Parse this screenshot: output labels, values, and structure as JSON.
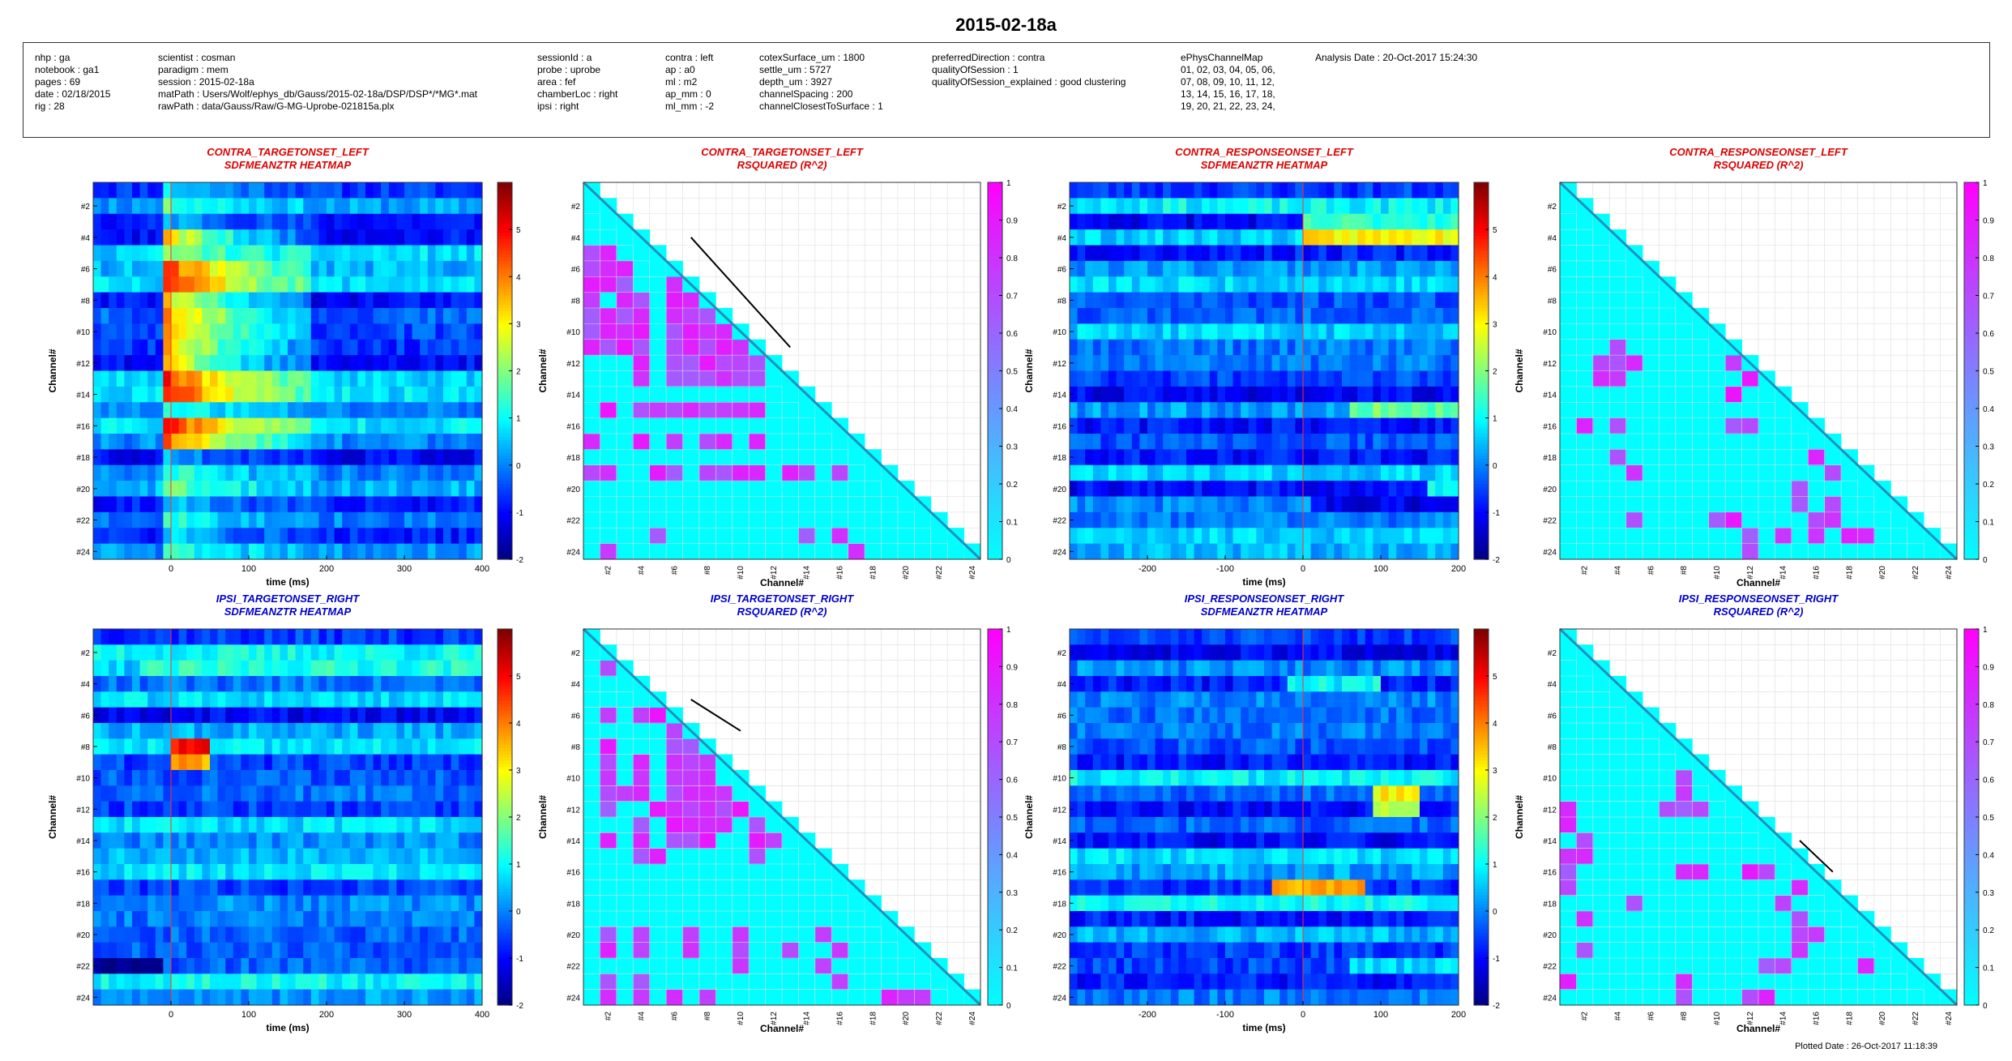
{
  "page": {
    "title": "2015-02-18a",
    "plotted_date": "Plotted Date : 26-Oct-2017 11:18:39"
  },
  "info": {
    "columns": [
      [
        "nhp : ga",
        "notebook : ga1",
        "pages : 69",
        "date : 02/18/2015",
        "rig : 28"
      ],
      [
        "scientist : cosman",
        "paradigm : mem",
        "session : 2015-02-18a",
        "matPath : Users/Wolf/ephys_db/Gauss/2015-02-18a/DSP/DSP*/*MG*.mat",
        "rawPath : data/Gauss/Raw/G-MG-Uprobe-021815a.plx"
      ],
      [
        "sessionId : a",
        "probe : uprobe",
        "area : fef",
        "chamberLoc : right",
        "ipsi : right"
      ],
      [
        "contra : left",
        "ap : a0",
        "ml : m2",
        "ap_mm : 0",
        "ml_mm : -2"
      ],
      [
        "cotexSurface_um : 1800",
        "settle_um : 5727",
        "depth_um : 3927",
        "channelSpacing : 200",
        "channelClosestToSurface : 1"
      ],
      [
        "preferredDirection : contra",
        "qualityOfSession : 1",
        "qualityOfSession_explained : good clustering"
      ],
      [
        "ePhysChannelMap",
        "01, 02, 03, 04, 05, 06,",
        "07, 08, 09, 10, 11, 12,",
        "13, 14, 15, 16, 17, 18,",
        "19, 20, 21, 22, 23, 24,"
      ],
      [
        "Analysis Date : 20-Oct-2017 15:24:30"
      ]
    ]
  },
  "colors": {
    "contra_title": "#dd0000",
    "ipsi_title": "#0000cc",
    "r2_low": "#00ffff",
    "r2_high": "#ff00ff",
    "diag_line": "#1f8fc0"
  },
  "chart_data": [
    {
      "type": "heatmap",
      "colormap": "jet",
      "title": [
        "CONTRA_TARGETONSET_LEFT",
        "SDFMEANZTR HEATMAP"
      ],
      "xlabel": "time (ms)",
      "ylabel": "Channel#",
      "xlim": [
        -100,
        400
      ],
      "xticks": [
        0,
        100,
        200,
        300,
        400
      ],
      "event_x": 0,
      "yticks": [
        "#2",
        "#4",
        "#6",
        "#8",
        "#10",
        "#12",
        "#14",
        "#16",
        "#18",
        "#20",
        "#22",
        "#24"
      ],
      "clim": [
        -2,
        6
      ],
      "colorbar_ticks": [
        -2,
        -1,
        0,
        1,
        2,
        3,
        4,
        5
      ],
      "channels": 24,
      "bins": 50,
      "pattern": "target",
      "seed": 11
    },
    {
      "type": "heatmap",
      "colormap": "cyan-magenta",
      "title": [
        "CONTRA_TARGETONSET_LEFT",
        "RSQUARED (R^2)"
      ],
      "xlabel": "Channel#",
      "ylabel": "Channel#",
      "ticks": [
        "#2",
        "#4",
        "#6",
        "#8",
        "#10",
        "#12",
        "#14",
        "#16",
        "#18",
        "#20",
        "#22",
        "#24"
      ],
      "clim": [
        0,
        1
      ],
      "colorbar_ticks": [
        0,
        0.1,
        0.2,
        0.3,
        0.4,
        0.5,
        0.6,
        0.7,
        0.8,
        0.9,
        1
      ],
      "channels": 24,
      "high_cells": [
        [
          4,
          0
        ],
        [
          5,
          0
        ],
        [
          6,
          0
        ],
        [
          7,
          0
        ],
        [
          8,
          0
        ],
        [
          9,
          0
        ],
        [
          10,
          0
        ],
        [
          4,
          1
        ],
        [
          5,
          1
        ],
        [
          6,
          1
        ],
        [
          8,
          1
        ],
        [
          9,
          1
        ],
        [
          10,
          1
        ],
        [
          5,
          2
        ],
        [
          6,
          2
        ],
        [
          7,
          2
        ],
        [
          8,
          2
        ],
        [
          9,
          2
        ],
        [
          10,
          2
        ],
        [
          7,
          3
        ],
        [
          8,
          3
        ],
        [
          9,
          3
        ],
        [
          10,
          3
        ],
        [
          11,
          3
        ],
        [
          12,
          3
        ],
        [
          14,
          1
        ],
        [
          14,
          3
        ],
        [
          14,
          4
        ],
        [
          14,
          5
        ],
        [
          14,
          6
        ],
        [
          14,
          7
        ],
        [
          14,
          8
        ],
        [
          14,
          9
        ],
        [
          14,
          10
        ],
        [
          16,
          0
        ],
        [
          16,
          3
        ],
        [
          16,
          5
        ],
        [
          16,
          7
        ],
        [
          16,
          8
        ],
        [
          16,
          10
        ],
        [
          18,
          0
        ],
        [
          18,
          1
        ],
        [
          18,
          4
        ],
        [
          18,
          5
        ],
        [
          18,
          7
        ],
        [
          18,
          8
        ],
        [
          18,
          9
        ],
        [
          18,
          10
        ],
        [
          18,
          12
        ],
        [
          18,
          13
        ],
        [
          18,
          15
        ],
        [
          22,
          4
        ],
        [
          22,
          13
        ],
        [
          22,
          15
        ],
        [
          23,
          1
        ],
        [
          23,
          16
        ],
        [
          24,
          0
        ],
        [
          24,
          1
        ],
        [
          24,
          5
        ],
        [
          24,
          6
        ],
        [
          24,
          7
        ],
        [
          24,
          8
        ],
        [
          24,
          9
        ],
        [
          24,
          10
        ],
        [
          24,
          11
        ]
      ],
      "high_block": {
        "rows": [
          4,
          12
        ],
        "cols": [
          5,
          10
        ]
      },
      "slope_line": [
        [
          6.5,
          3.5
        ],
        [
          12.5,
          10.5
        ]
      ]
    },
    {
      "type": "heatmap",
      "colormap": "jet",
      "title": [
        "CONTRA_RESPONSEONSET_LEFT",
        "SDFMEANZTR HEATMAP"
      ],
      "xlabel": "time (ms)",
      "ylabel": "Channel#",
      "xlim": [
        -300,
        200
      ],
      "xticks": [
        -200,
        -100,
        0,
        100,
        200
      ],
      "event_x": 0,
      "yticks": [
        "#2",
        "#4",
        "#6",
        "#8",
        "#10",
        "#12",
        "#14",
        "#16",
        "#18",
        "#20",
        "#22",
        "#24"
      ],
      "clim": [
        -2,
        6
      ],
      "colorbar_ticks": [
        -2,
        -1,
        0,
        1,
        2,
        3,
        4,
        5
      ],
      "channels": 24,
      "bins": 50,
      "pattern": "response_contra",
      "seed": 23
    },
    {
      "type": "heatmap",
      "colormap": "cyan-magenta",
      "title": [
        "CONTRA_RESPONSEONSET_LEFT",
        "RSQUARED (R^2)"
      ],
      "xlabel": "Channel#",
      "ylabel": "Channel#",
      "ticks": [
        "#2",
        "#4",
        "#6",
        "#8",
        "#10",
        "#12",
        "#14",
        "#16",
        "#18",
        "#20",
        "#22",
        "#24"
      ],
      "clim": [
        0,
        1
      ],
      "colorbar_ticks": [
        0,
        0.1,
        0.2,
        0.3,
        0.4,
        0.5,
        0.6,
        0.7,
        0.8,
        0.9,
        1
      ],
      "channels": 24,
      "high_cells": [
        [
          10,
          3
        ],
        [
          11,
          2
        ],
        [
          11,
          3
        ],
        [
          11,
          4
        ],
        [
          12,
          2
        ],
        [
          12,
          3
        ],
        [
          11,
          10
        ],
        [
          12,
          11
        ],
        [
          13,
          10
        ],
        [
          15,
          1
        ],
        [
          15,
          3
        ],
        [
          15,
          10
        ],
        [
          15,
          11
        ],
        [
          17,
          3
        ],
        [
          17,
          15
        ],
        [
          18,
          4
        ],
        [
          18,
          16
        ],
        [
          19,
          14
        ],
        [
          20,
          14
        ],
        [
          20,
          16
        ],
        [
          21,
          4
        ],
        [
          21,
          9
        ],
        [
          21,
          10
        ],
        [
          21,
          15
        ],
        [
          21,
          16
        ],
        [
          22,
          11
        ],
        [
          22,
          13
        ],
        [
          22,
          15
        ],
        [
          22,
          17
        ],
        [
          22,
          18
        ],
        [
          23,
          11
        ]
      ],
      "slope_line": null
    },
    {
      "type": "heatmap",
      "colormap": "jet",
      "title": [
        "IPSI_TARGETONSET_RIGHT",
        "SDFMEANZTR HEATMAP"
      ],
      "xlabel": "time (ms)",
      "ylabel": "Channel#",
      "xlim": [
        -100,
        400
      ],
      "xticks": [
        0,
        100,
        200,
        300,
        400
      ],
      "event_x": 0,
      "yticks": [
        "#2",
        "#4",
        "#6",
        "#8",
        "#10",
        "#12",
        "#14",
        "#16",
        "#18",
        "#20",
        "#22",
        "#24"
      ],
      "clim": [
        -2,
        6
      ],
      "colorbar_ticks": [
        -2,
        -1,
        0,
        1,
        2,
        3,
        4,
        5
      ],
      "channels": 24,
      "bins": 50,
      "pattern": "ipsi_target",
      "seed": 37
    },
    {
      "type": "heatmap",
      "colormap": "cyan-magenta",
      "title": [
        "IPSI_TARGETONSET_RIGHT",
        "RSQUARED (R^2)"
      ],
      "xlabel": "Channel#",
      "ylabel": "Channel#",
      "ticks": [
        "#2",
        "#4",
        "#6",
        "#8",
        "#10",
        "#12",
        "#14",
        "#16",
        "#18",
        "#20",
        "#22",
        "#24"
      ],
      "clim": [
        0,
        1
      ],
      "colorbar_ticks": [
        0,
        0.1,
        0.2,
        0.3,
        0.4,
        0.5,
        0.6,
        0.7,
        0.8,
        0.9,
        1
      ],
      "channels": 24,
      "high_cells": [
        [
          2,
          1
        ],
        [
          5,
          1
        ],
        [
          5,
          3
        ],
        [
          5,
          4
        ],
        [
          6,
          5
        ],
        [
          7,
          1
        ],
        [
          7,
          5
        ],
        [
          7,
          6
        ],
        [
          8,
          1
        ],
        [
          8,
          3
        ],
        [
          8,
          5
        ],
        [
          8,
          6
        ],
        [
          8,
          7
        ],
        [
          9,
          1
        ],
        [
          9,
          3
        ],
        [
          9,
          5
        ],
        [
          9,
          6
        ],
        [
          9,
          7
        ],
        [
          10,
          1
        ],
        [
          10,
          2
        ],
        [
          10,
          3
        ],
        [
          10,
          5
        ],
        [
          10,
          6
        ],
        [
          10,
          7
        ],
        [
          10,
          8
        ],
        [
          11,
          1
        ],
        [
          11,
          4
        ],
        [
          11,
          5
        ],
        [
          11,
          6
        ],
        [
          11,
          7
        ],
        [
          11,
          8
        ],
        [
          11,
          9
        ],
        [
          12,
          3
        ],
        [
          12,
          5
        ],
        [
          12,
          6
        ],
        [
          12,
          7
        ],
        [
          12,
          8
        ],
        [
          12,
          10
        ],
        [
          13,
          1
        ],
        [
          13,
          3
        ],
        [
          13,
          5
        ],
        [
          13,
          6
        ],
        [
          13,
          7
        ],
        [
          13,
          10
        ],
        [
          13,
          11
        ],
        [
          14,
          3
        ],
        [
          14,
          4
        ],
        [
          14,
          10
        ],
        [
          19,
          1
        ],
        [
          19,
          3
        ],
        [
          19,
          6
        ],
        [
          19,
          9
        ],
        [
          19,
          14
        ],
        [
          20,
          1
        ],
        [
          20,
          3
        ],
        [
          20,
          6
        ],
        [
          20,
          9
        ],
        [
          20,
          12
        ],
        [
          20,
          15
        ],
        [
          21,
          9
        ],
        [
          21,
          14
        ],
        [
          22,
          1
        ],
        [
          22,
          3
        ],
        [
          22,
          15
        ],
        [
          23,
          1
        ],
        [
          23,
          3
        ],
        [
          23,
          5
        ],
        [
          23,
          7
        ],
        [
          23,
          18
        ],
        [
          23,
          19
        ],
        [
          23,
          20
        ]
      ],
      "slope_line": [
        [
          6.5,
          4.5
        ],
        [
          9.5,
          6.5
        ]
      ]
    },
    {
      "type": "heatmap",
      "colormap": "jet",
      "title": [
        "IPSI_RESPONSEONSET_RIGHT",
        "SDFMEANZTR HEATMAP"
      ],
      "xlabel": "time (ms)",
      "ylabel": "Channel#",
      "xlim": [
        -300,
        200
      ],
      "xticks": [
        -200,
        -100,
        0,
        100,
        200
      ],
      "event_x": 0,
      "yticks": [
        "#2",
        "#4",
        "#6",
        "#8",
        "#10",
        "#12",
        "#14",
        "#16",
        "#18",
        "#20",
        "#22",
        "#24"
      ],
      "clim": [
        -2,
        6
      ],
      "colorbar_ticks": [
        -2,
        -1,
        0,
        1,
        2,
        3,
        4,
        5
      ],
      "channels": 24,
      "bins": 50,
      "pattern": "response_ipsi",
      "seed": 51
    },
    {
      "type": "heatmap",
      "colormap": "cyan-magenta",
      "title": [
        "IPSI_RESPONSEONSET_RIGHT",
        "RSQUARED (R^2)"
      ],
      "xlabel": "Channel#",
      "ylabel": "Channel#",
      "ticks": [
        "#2",
        "#4",
        "#6",
        "#8",
        "#10",
        "#12",
        "#14",
        "#16",
        "#18",
        "#20",
        "#22",
        "#24"
      ],
      "clim": [
        0,
        1
      ],
      "colorbar_ticks": [
        0,
        0.1,
        0.2,
        0.3,
        0.4,
        0.5,
        0.6,
        0.7,
        0.8,
        0.9,
        1
      ],
      "channels": 24,
      "high_cells": [
        [
          9,
          7
        ],
        [
          10,
          7
        ],
        [
          11,
          0
        ],
        [
          11,
          6
        ],
        [
          11,
          7
        ],
        [
          11,
          8
        ],
        [
          11,
          11
        ],
        [
          12,
          0
        ],
        [
          13,
          1
        ],
        [
          14,
          0
        ],
        [
          14,
          1
        ],
        [
          15,
          0
        ],
        [
          15,
          7
        ],
        [
          15,
          8
        ],
        [
          15,
          11
        ],
        [
          15,
          12
        ],
        [
          16,
          0
        ],
        [
          16,
          14
        ],
        [
          17,
          4
        ],
        [
          17,
          13
        ],
        [
          18,
          1
        ],
        [
          18,
          14
        ],
        [
          19,
          14
        ],
        [
          19,
          15
        ],
        [
          20,
          1
        ],
        [
          20,
          14
        ],
        [
          21,
          12
        ],
        [
          21,
          13
        ],
        [
          21,
          18
        ],
        [
          22,
          0
        ],
        [
          22,
          7
        ],
        [
          23,
          7
        ],
        [
          24,
          0
        ],
        [
          23,
          11
        ],
        [
          23,
          12
        ]
      ],
      "slope_line": [
        [
          14.5,
          13.5
        ],
        [
          16.5,
          15.5
        ]
      ]
    }
  ]
}
